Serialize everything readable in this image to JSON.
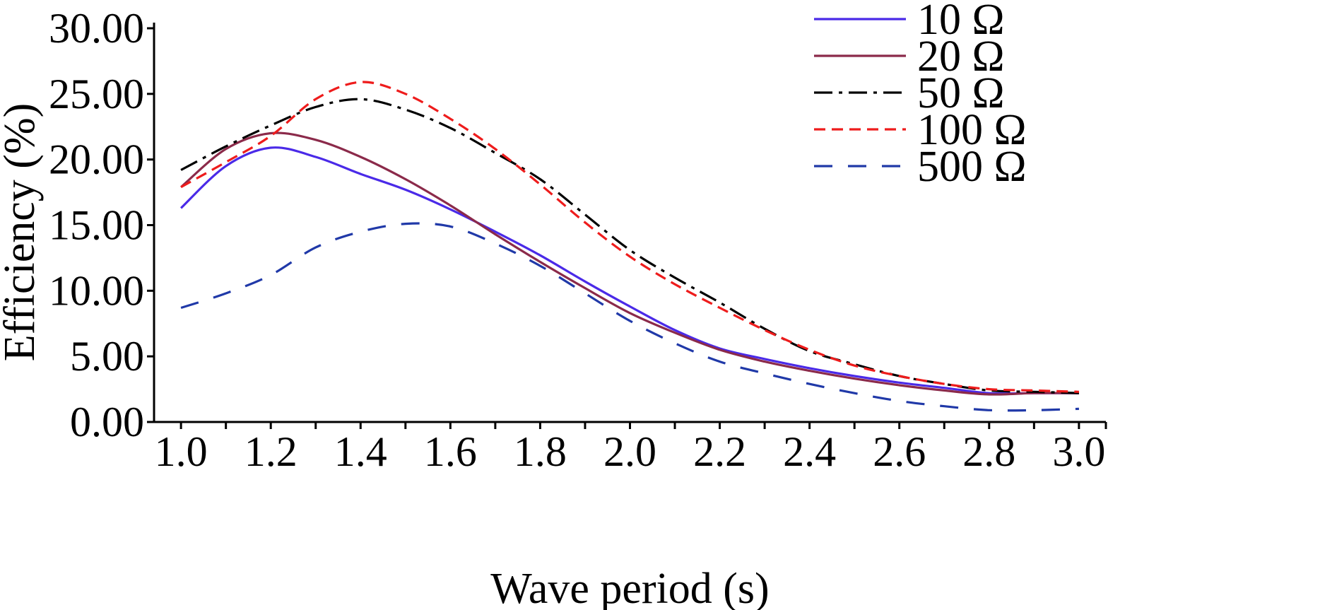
{
  "chart_data": {
    "type": "line",
    "title": "",
    "xlabel": "Wave period (s)",
    "ylabel": "Efficiency (%)",
    "xlim": [
      0.94,
      3.06
    ],
    "ylim": [
      0,
      30
    ],
    "x_ticks": [
      "1.0",
      "1.2",
      "1.4",
      "1.6",
      "1.8",
      "2.0",
      "2.2",
      "2.4",
      "2.6",
      "2.8",
      "3.0"
    ],
    "y_ticks": [
      "0.00",
      "5.00",
      "10.00",
      "15.00",
      "20.00",
      "25.00",
      "30.00"
    ],
    "grid": false,
    "legend_position": "top-right",
    "x": [
      1.0,
      1.1,
      1.2,
      1.3,
      1.4,
      1.5,
      1.6,
      1.7,
      1.8,
      1.9,
      2.0,
      2.1,
      2.2,
      2.3,
      2.4,
      2.5,
      2.6,
      2.7,
      2.8,
      2.9,
      3.0
    ],
    "series": [
      {
        "name": "10 Ω",
        "color": "#4a2ae8",
        "dash": "solid",
        "values": [
          16.3,
          19.5,
          20.9,
          20.2,
          18.9,
          17.7,
          16.2,
          14.5,
          12.7,
          10.7,
          8.8,
          7.0,
          5.6,
          4.8,
          4.1,
          3.5,
          3.0,
          2.6,
          2.2,
          2.2,
          2.2
        ]
      },
      {
        "name": "20 Ω",
        "color": "#8b2a4a",
        "dash": "solid",
        "values": [
          17.9,
          20.8,
          22.0,
          21.5,
          20.2,
          18.5,
          16.5,
          14.3,
          12.2,
          10.2,
          8.3,
          6.8,
          5.5,
          4.6,
          3.9,
          3.3,
          2.8,
          2.4,
          2.1,
          2.2,
          2.2
        ]
      },
      {
        "name": "50 Ω",
        "color": "#000000",
        "dash": "dashdot",
        "values": [
          19.2,
          21.0,
          22.6,
          24.0,
          24.6,
          23.8,
          22.4,
          20.5,
          18.5,
          15.8,
          13.1,
          11.0,
          9.1,
          7.1,
          5.4,
          4.4,
          3.5,
          2.9,
          2.4,
          2.3,
          2.2
        ]
      },
      {
        "name": "100 Ω",
        "color": "#ee1c1c",
        "dash": "dash",
        "values": [
          17.9,
          19.8,
          21.8,
          24.6,
          25.9,
          25.0,
          23.1,
          20.8,
          18.1,
          15.2,
          12.6,
          10.5,
          8.7,
          7.0,
          5.5,
          4.3,
          3.5,
          2.9,
          2.5,
          2.4,
          2.3
        ]
      },
      {
        "name": "500 Ω",
        "color": "#2039a8",
        "dash": "longdash",
        "values": [
          8.7,
          9.8,
          11.2,
          13.3,
          14.5,
          15.1,
          14.9,
          13.6,
          11.9,
          9.8,
          7.7,
          6.0,
          4.6,
          3.7,
          2.9,
          2.2,
          1.6,
          1.2,
          0.9,
          0.9,
          1.0
        ]
      }
    ]
  }
}
